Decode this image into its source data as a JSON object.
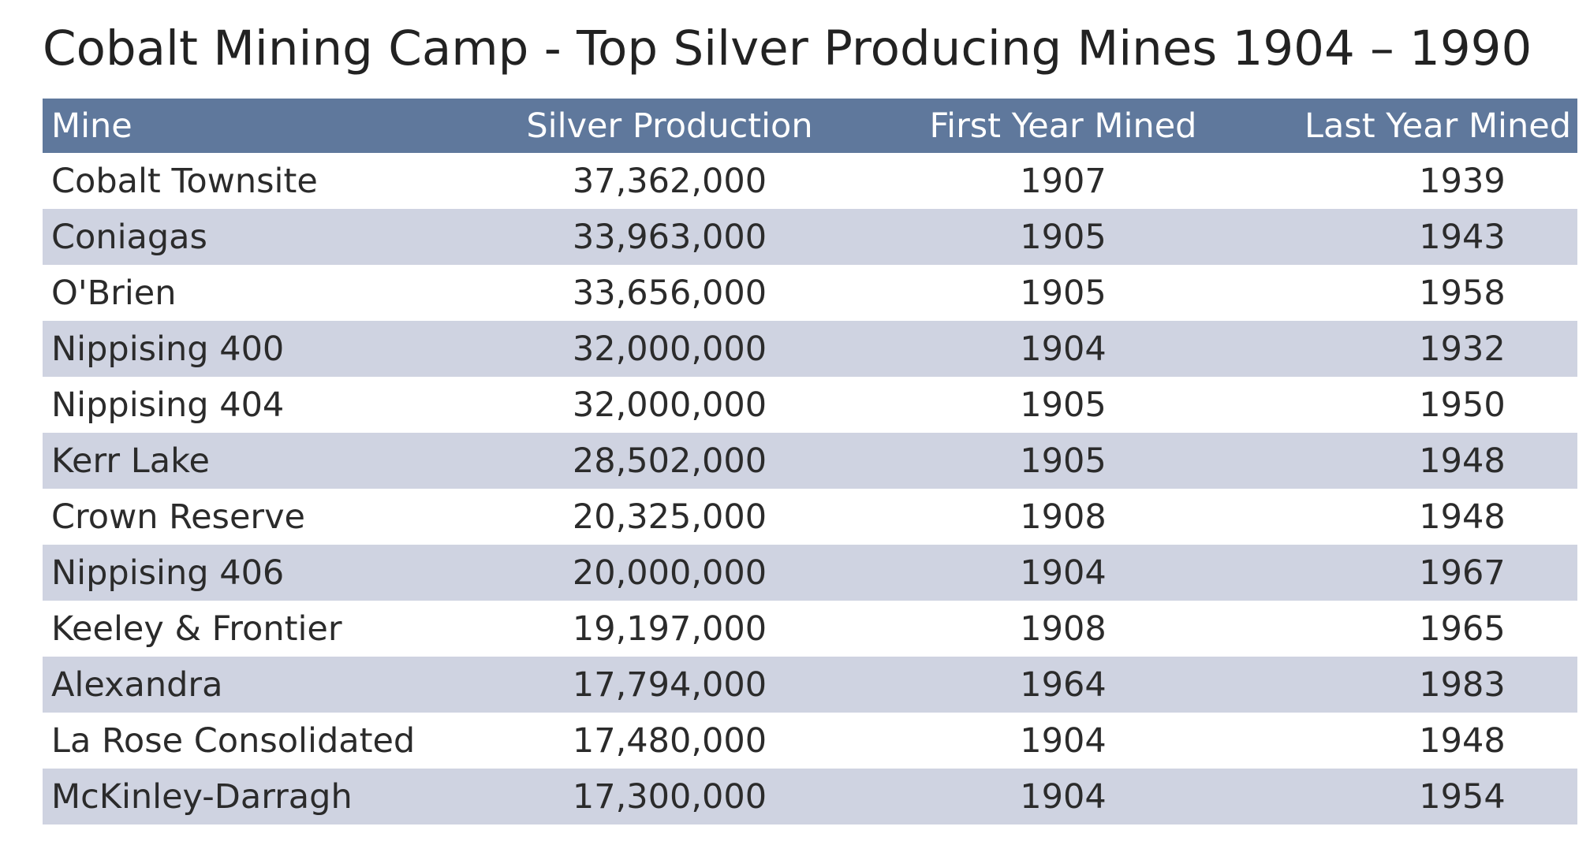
{
  "title": "Cobalt Mining Camp - Top Silver Producing Mines 1904 – 1990",
  "table": {
    "headers": {
      "mine": "Mine",
      "silver": "Silver Production",
      "first": "First Year Mined",
      "last": "Last Year Mined"
    },
    "rows": [
      {
        "mine": "Cobalt Townsite",
        "silver": "37,362,000",
        "first": "1907",
        "last": "1939"
      },
      {
        "mine": "Coniagas",
        "silver": "33,963,000",
        "first": "1905",
        "last": "1943"
      },
      {
        "mine": "O'Brien",
        "silver": "33,656,000",
        "first": "1905",
        "last": "1958"
      },
      {
        "mine": "Nippising 400",
        "silver": "32,000,000",
        "first": "1904",
        "last": "1932"
      },
      {
        "mine": "Nippising 404",
        "silver": "32,000,000",
        "first": "1905",
        "last": "1950"
      },
      {
        "mine": "Kerr Lake",
        "silver": "28,502,000",
        "first": "1905",
        "last": "1948"
      },
      {
        "mine": "Crown Reserve",
        "silver": "20,325,000",
        "first": "1908",
        "last": "1948"
      },
      {
        "mine": "Nippising 406",
        "silver": "20,000,000",
        "first": "1904",
        "last": "1967"
      },
      {
        "mine": "Keeley & Frontier",
        "silver": "19,197,000",
        "first": "1908",
        "last": "1965"
      },
      {
        "mine": "Alexandra",
        "silver": "17,794,000",
        "first": "1964",
        "last": "1983"
      },
      {
        "mine": "La Rose Consolidated",
        "silver": "17,480,000",
        "first": "1904",
        "last": "1948"
      },
      {
        "mine": "McKinley-Darragh",
        "silver": "17,300,000",
        "first": "1904",
        "last": "1954"
      }
    ]
  },
  "colors": {
    "header_bg": "#5f789c",
    "stripe_bg": "#cfd3e1",
    "text": "#2b2b2b"
  }
}
